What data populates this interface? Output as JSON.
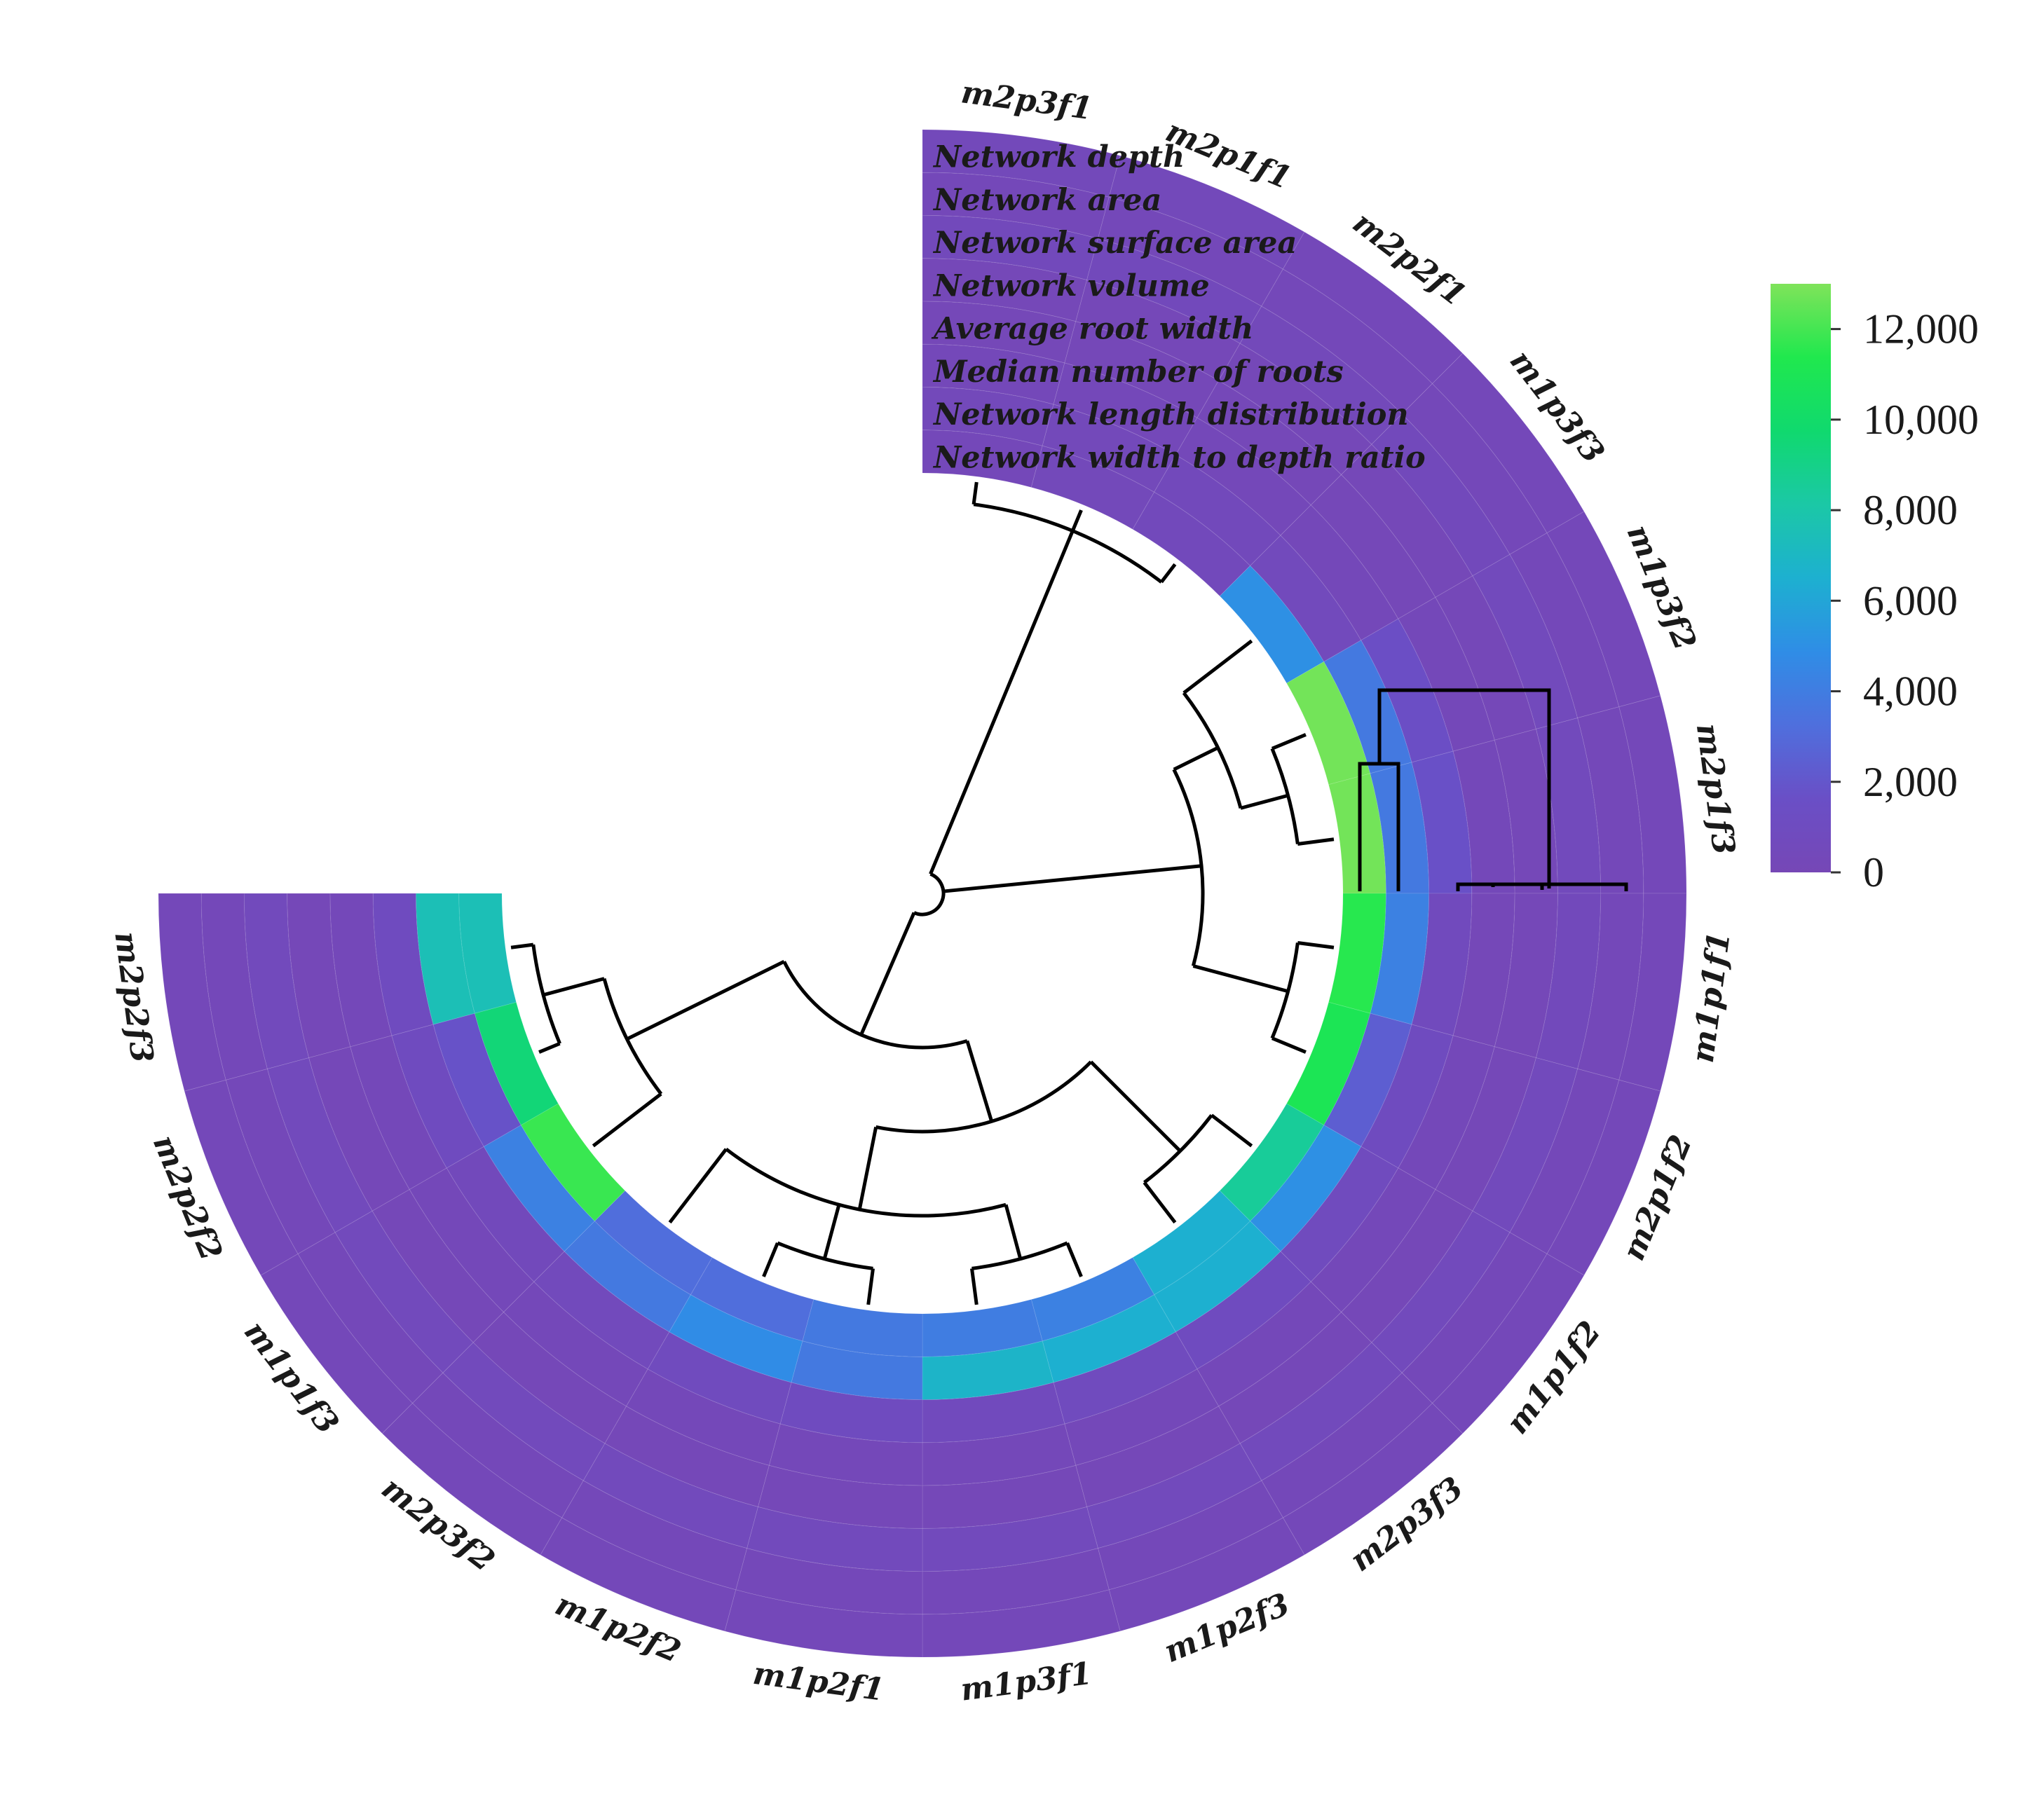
{
  "chart_data": {
    "type": "heatmap",
    "layout": "circular",
    "title": "",
    "samples": [
      "m2p3f1",
      "m2p1f1",
      "m2p2f1",
      "m1p3f3",
      "m1p3f2",
      "m2p1f3",
      "m1p1f1",
      "m2p1f2",
      "m1p1f2",
      "m2p3f3",
      "m1p2f3",
      "m1p3f1",
      "m1p2f1",
      "m1p2f2",
      "m2p3f2",
      "m1p1f3",
      "m2p2f2",
      "m2p2f3"
    ],
    "rings": [
      "Network depth",
      "Network area",
      "Network surface area",
      "Network volume",
      "Average root width",
      "Median number of roots",
      "Network length distribution",
      "Network width to depth ratio"
    ],
    "values": [
      [
        400,
        300,
        500,
        200,
        200,
        300,
        400,
        300
      ],
      [
        400,
        300,
        500,
        200,
        200,
        300,
        400,
        400
      ],
      [
        300,
        300,
        400,
        200,
        200,
        300,
        500,
        500
      ],
      [
        300,
        300,
        500,
        200,
        200,
        300,
        600,
        5000
      ],
      [
        300,
        300,
        600,
        200,
        300,
        1500,
        3800,
        12800
      ],
      [
        300,
        300,
        600,
        200,
        300,
        1700,
        3800,
        12800
      ],
      [
        300,
        300,
        500,
        200,
        200,
        700,
        4200,
        11500
      ],
      [
        300,
        300,
        600,
        200,
        300,
        900,
        2400,
        11000
      ],
      [
        300,
        300,
        600,
        200,
        300,
        800,
        5000,
        8500
      ],
      [
        300,
        300,
        600,
        200,
        300,
        900,
        6500,
        6500
      ],
      [
        300,
        300,
        600,
        200,
        300,
        800,
        6500,
        4200
      ],
      [
        300,
        300,
        600,
        200,
        300,
        700,
        6800,
        4000
      ],
      [
        300,
        300,
        600,
        200,
        300,
        900,
        3800,
        3800
      ],
      [
        300,
        300,
        600,
        200,
        300,
        800,
        4800,
        3200
      ],
      [
        300,
        300,
        600,
        200,
        300,
        600,
        3800,
        3200
      ],
      [
        300,
        300,
        600,
        200,
        300,
        500,
        4200,
        11800
      ],
      [
        300,
        300,
        600,
        200,
        300,
        900,
        1800,
        9500
      ],
      [
        300,
        300,
        600,
        200,
        300,
        900,
        7500,
        7500
      ]
    ],
    "colorbar": {
      "ticks": [
        "12,000",
        "10,000",
        "8,000",
        "6,000",
        "4,000",
        "2,000",
        "0"
      ],
      "tick_values": [
        12000,
        10000,
        8000,
        6000,
        4000,
        2000,
        0
      ],
      "range": [
        0,
        13000
      ],
      "colors": [
        "#7647b6",
        "#6a4fc6",
        "#4f6fdd",
        "#2f8de6",
        "#1db0d0",
        "#1bc8a6",
        "#10d96e",
        "#20e84e",
        "#7fe35a"
      ]
    }
  }
}
